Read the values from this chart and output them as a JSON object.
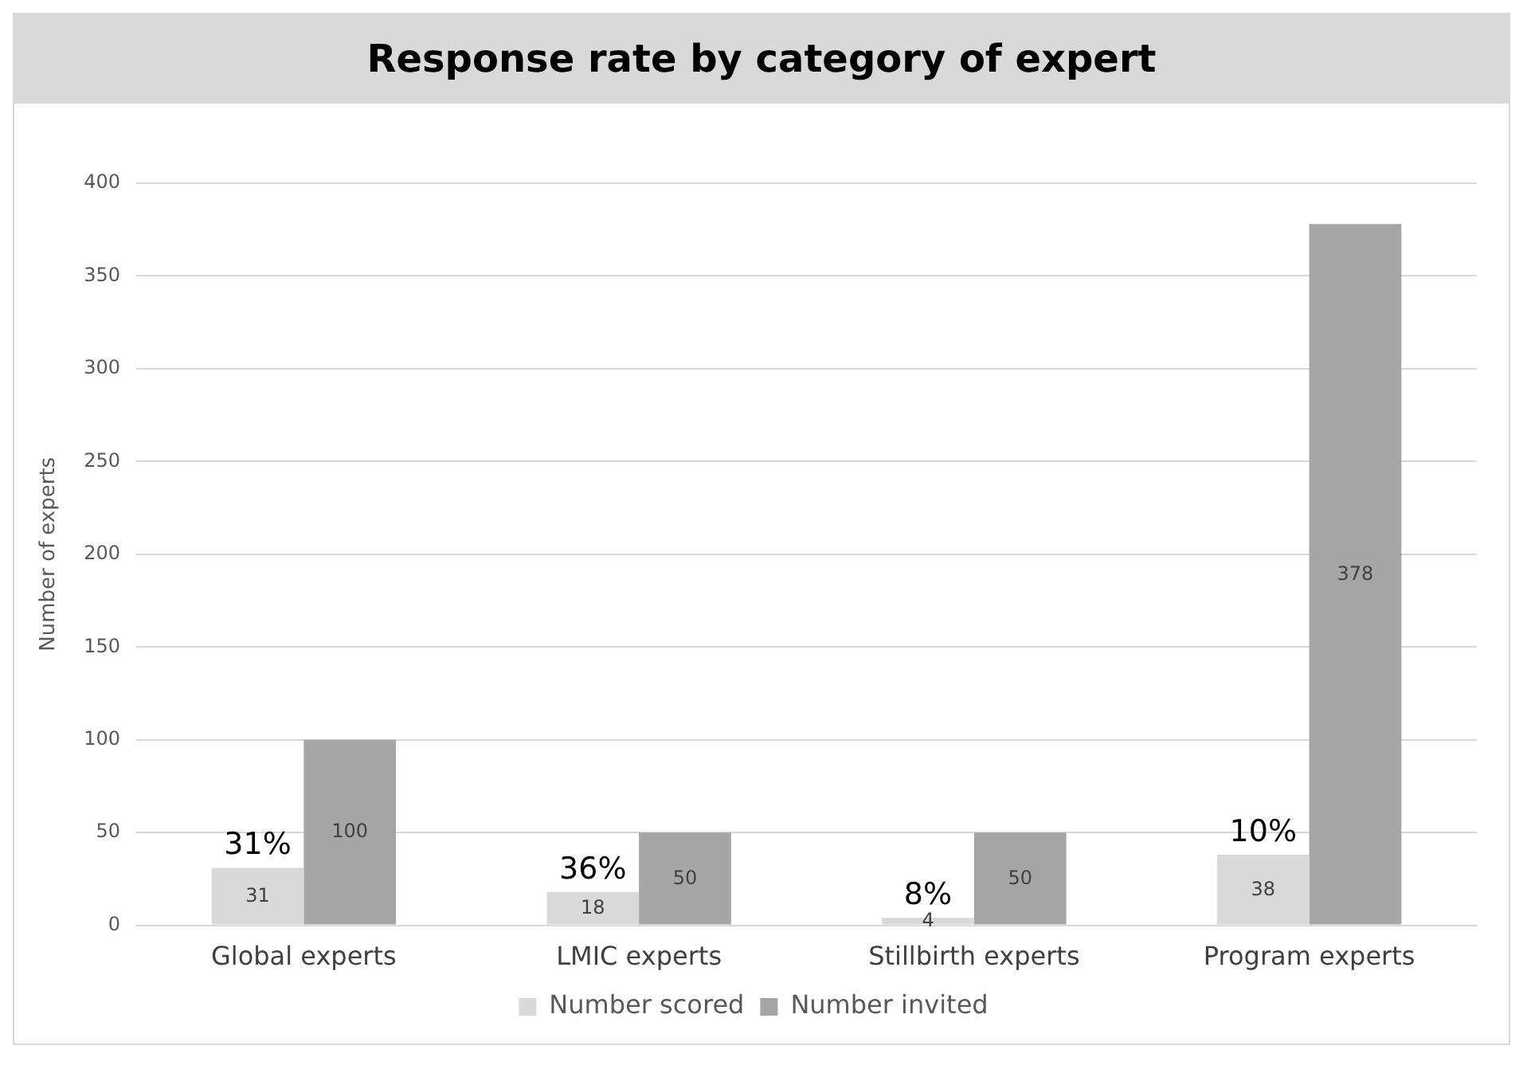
{
  "chart_data": {
    "type": "bar",
    "title": "Response rate by category of expert",
    "ylabel": "Number of experts",
    "categories": [
      "Global experts",
      "LMIC experts",
      "Stillbirth experts",
      "Program experts"
    ],
    "series": [
      {
        "name": "Number scored",
        "color": "#d9d9d9",
        "values": [
          31,
          18,
          4,
          38
        ]
      },
      {
        "name": "Number invited",
        "color": "#a6a6a6",
        "values": [
          100,
          50,
          50,
          378
        ]
      }
    ],
    "ylim": [
      0,
      400
    ],
    "yticks": [
      0,
      50,
      100,
      150,
      200,
      250,
      300,
      350,
      400
    ],
    "grid": "y",
    "legend": "bottom",
    "data_labels": true,
    "annotations": [
      {
        "text": "31%",
        "x": "Global experts",
        "y": 31
      },
      {
        "text": "36%",
        "x": "LMIC experts",
        "y": 18
      },
      {
        "text": "8%",
        "x": "Stillbirth experts",
        "y": 4
      },
      {
        "text": "10%",
        "x": "Program experts",
        "y": 38
      }
    ]
  }
}
